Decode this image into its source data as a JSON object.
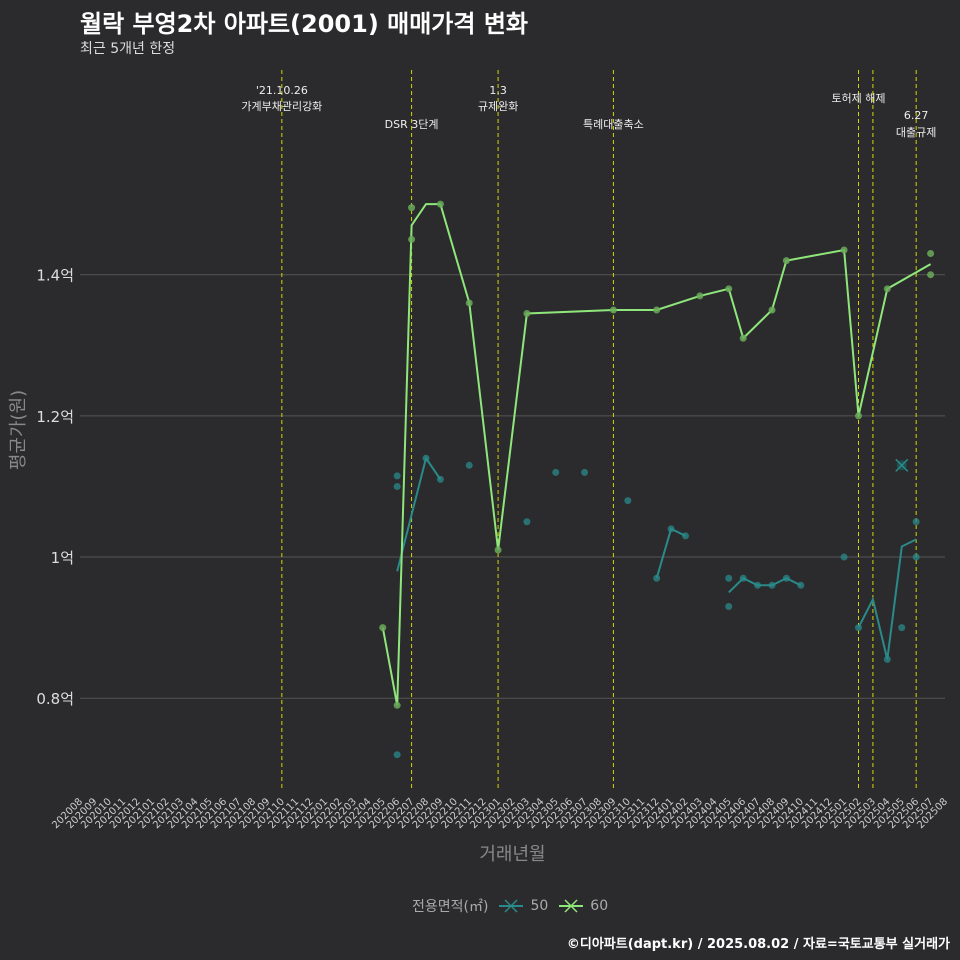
{
  "header": {
    "title": "월락 부영2차 아파트(2001) 매매가격 변화",
    "subtitle": "최근 5개년 한정",
    "caption": "©디아파트(dapt.kr) / 2025.08.02 / 자료=국토교통부 실거래가"
  },
  "legend": {
    "title": "전용면적(㎡)",
    "items": [
      "50",
      "60"
    ]
  },
  "colors": {
    "background": "#2b2b2d",
    "grid": "#555555",
    "vline": "#d4d400",
    "s50": "#2a8a8a",
    "s60": "#8fe67a"
  },
  "chart_data": {
    "type": "line",
    "xlabel": "거래년월",
    "ylabel": "평균가(원)",
    "ylim": [
      0.67,
      1.69
    ],
    "yticks": [
      0.8,
      1.0,
      1.2,
      1.4
    ],
    "ytick_labels": [
      "0.8억",
      "1억",
      "1.2억",
      "1.4억"
    ],
    "categories": [
      "202008",
      "202009",
      "202010",
      "202011",
      "202012",
      "202101",
      "202102",
      "202103",
      "202104",
      "202105",
      "202106",
      "202107",
      "202108",
      "202109",
      "202110",
      "202111",
      "202112",
      "202201",
      "202202",
      "202203",
      "202204",
      "202205",
      "202206",
      "202207",
      "202208",
      "202209",
      "202210",
      "202211",
      "202212",
      "202301",
      "202302",
      "202303",
      "202304",
      "202305",
      "202306",
      "202307",
      "202308",
      "202309",
      "202310",
      "202311",
      "202312",
      "202401",
      "202402",
      "202403",
      "202404",
      "202405",
      "202406",
      "202407",
      "202408",
      "202409",
      "202410",
      "202411",
      "202412",
      "202501",
      "202502",
      "202503",
      "202504",
      "202505",
      "202506",
      "202507",
      "202508"
    ],
    "series": [
      {
        "name": "50",
        "line": [
          [
            "202206",
            0.98
          ],
          [
            "202208",
            1.14
          ],
          [
            "202209",
            1.11
          ]
        ],
        "line2": [
          [
            "202312",
            0.97
          ],
          [
            "202401",
            1.04
          ],
          [
            "202402",
            1.03
          ]
        ],
        "line3": [
          [
            "202405",
            0.95
          ],
          [
            "202406",
            0.97
          ],
          [
            "202407",
            0.96
          ],
          [
            "202408",
            0.96
          ],
          [
            "202409",
            0.97
          ],
          [
            "202410",
            0.96
          ]
        ],
        "line4": [
          [
            "202502",
            0.9
          ],
          [
            "202503",
            0.94
          ],
          [
            "202504",
            0.855
          ],
          [
            "202505",
            1.015
          ],
          [
            "202506",
            1.025
          ]
        ],
        "points": [
          [
            "202206",
            0.72
          ],
          [
            "202206",
            1.1
          ],
          [
            "202206",
            1.115
          ],
          [
            "202208",
            1.14
          ],
          [
            "202209",
            1.11
          ],
          [
            "202211",
            1.13
          ],
          [
            "202303",
            1.05
          ],
          [
            "202305",
            1.12
          ],
          [
            "202307",
            1.12
          ],
          [
            "202310",
            1.08
          ],
          [
            "202312",
            0.97
          ],
          [
            "202401",
            1.04
          ],
          [
            "202402",
            1.03
          ],
          [
            "202405",
            0.93
          ],
          [
            "202405",
            0.97
          ],
          [
            "202406",
            0.97
          ],
          [
            "202407",
            0.96
          ],
          [
            "202408",
            0.96
          ],
          [
            "202409",
            0.97
          ],
          [
            "202410",
            0.96
          ],
          [
            "202501",
            1.0
          ],
          [
            "202502",
            0.9
          ],
          [
            "202504",
            0.855
          ],
          [
            "202505",
            0.9
          ],
          [
            "202506",
            1.0
          ],
          [
            "202506",
            1.05
          ]
        ]
      },
      {
        "name": "60",
        "line": [
          [
            "202205",
            0.9
          ],
          [
            "202206",
            0.79
          ],
          [
            "202207",
            1.47
          ],
          [
            "202208",
            1.5
          ],
          [
            "202209",
            1.5
          ],
          [
            "202211",
            1.36
          ],
          [
            "202301",
            1.01
          ],
          [
            "202303",
            1.345
          ],
          [
            "202309",
            1.35
          ],
          [
            "202312",
            1.35
          ],
          [
            "202403",
            1.37
          ],
          [
            "202405",
            1.38
          ],
          [
            "202406",
            1.31
          ],
          [
            "202408",
            1.35
          ],
          [
            "202409",
            1.42
          ],
          [
            "202501",
            1.435
          ],
          [
            "202502",
            1.2
          ],
          [
            "202504",
            1.38
          ],
          [
            "202507",
            1.415
          ]
        ],
        "points": [
          [
            "202205",
            0.9
          ],
          [
            "202206",
            0.79
          ],
          [
            "202207",
            1.45
          ],
          [
            "202207",
            1.495
          ],
          [
            "202209",
            1.5
          ],
          [
            "202211",
            1.36
          ],
          [
            "202301",
            1.01
          ],
          [
            "202303",
            1.345
          ],
          [
            "202309",
            1.35
          ],
          [
            "202312",
            1.35
          ],
          [
            "202403",
            1.37
          ],
          [
            "202405",
            1.38
          ],
          [
            "202406",
            1.31
          ],
          [
            "202408",
            1.35
          ],
          [
            "202409",
            1.42
          ],
          [
            "202501",
            1.435
          ],
          [
            "202502",
            1.2
          ],
          [
            "202504",
            1.38
          ],
          [
            "202507",
            1.4
          ],
          [
            "202507",
            1.43
          ]
        ]
      }
    ],
    "marker_x": [
      [
        "202505",
        1.13
      ]
    ],
    "annotations": [
      {
        "x": "202110",
        "lines": [
          "'21.10.26",
          "가계부채관리강화"
        ]
      },
      {
        "x": "202207",
        "lines": [
          "DSR 3단계"
        ]
      },
      {
        "x": "202301",
        "lines": [
          "1.3",
          "규제완화"
        ]
      },
      {
        "x": "202309",
        "lines": [
          "특례대출축소"
        ]
      },
      {
        "x": "202502",
        "lines": [
          "토허제 해제"
        ]
      },
      {
        "x": "202503",
        "lines": []
      },
      {
        "x": "202506",
        "lines": [
          "6.27",
          "대출규제"
        ]
      }
    ]
  }
}
